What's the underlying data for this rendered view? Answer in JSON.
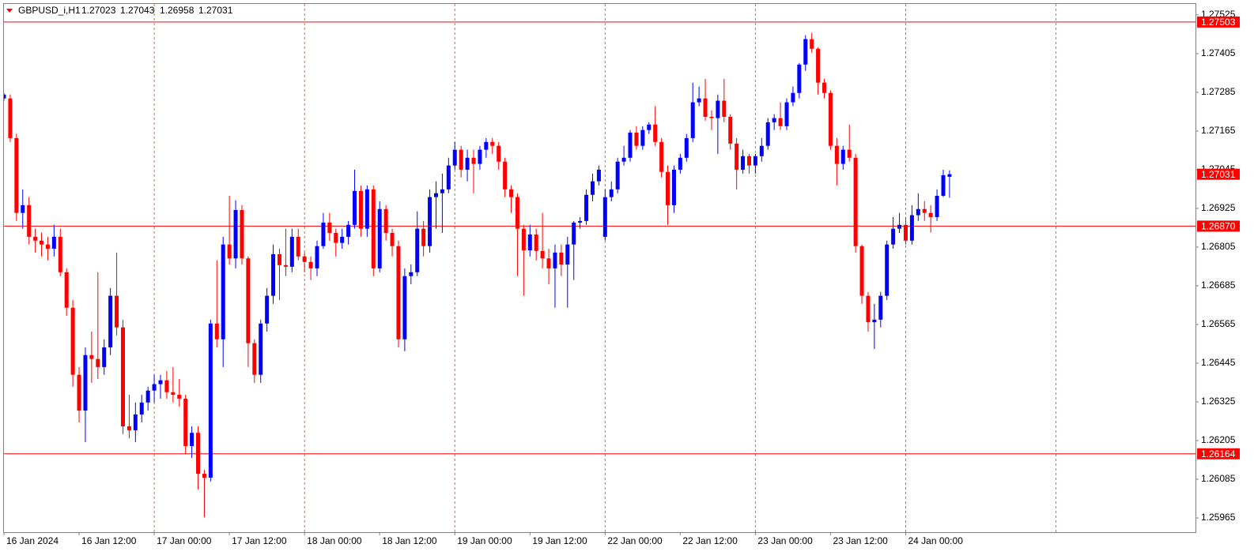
{
  "chart_data": {
    "type": "candlestick",
    "symbol": "GBPUSD_i,H1",
    "up_color": "#0000ff",
    "down_color": "#ff0000",
    "grid_color": "#e8622a",
    "level_color": "#ff0000",
    "categories": [
      "16 Jan 2024",
      null,
      null,
      null,
      null,
      null,
      null,
      null,
      null,
      null,
      null,
      null,
      "16 Jan 12:00",
      null,
      null,
      null,
      null,
      null,
      null,
      null,
      null,
      null,
      null,
      null,
      "17 Jan 00:00",
      null,
      null,
      null,
      null,
      null,
      null,
      null,
      null,
      null,
      null,
      null,
      "17 Jan 12:00",
      null,
      null,
      null,
      null,
      null,
      null,
      null,
      null,
      null,
      null,
      null,
      "18 Jan 00:00",
      null,
      null,
      null,
      null,
      null,
      null,
      null,
      null,
      null,
      null,
      null,
      "18 Jan 12:00",
      null,
      null,
      null,
      null,
      null,
      null,
      null,
      null,
      null,
      null,
      null,
      "19 Jan 00:00",
      null,
      null,
      null,
      null,
      null,
      null,
      null,
      null,
      null,
      null,
      null,
      "19 Jan 12:00",
      null,
      null,
      null,
      null,
      null,
      null,
      null,
      null,
      null,
      null,
      null,
      "22 Jan 00:00",
      null,
      null,
      null,
      null,
      null,
      null,
      null,
      null,
      null,
      null,
      null,
      "22 Jan 12:00",
      null,
      null,
      null,
      null,
      null,
      null,
      null,
      null,
      null,
      null,
      null,
      "23 Jan 00:00",
      null,
      null,
      null,
      null,
      null,
      null,
      null,
      null,
      null,
      null,
      null,
      "23 Jan 12:00",
      null,
      null,
      null,
      null,
      null,
      null,
      null,
      null,
      null,
      null,
      null,
      "24 Jan 00:00",
      null,
      null,
      null,
      null,
      null,
      null,
      null
    ],
    "open": [
      1.27266,
      1.27266,
      1.27143,
      1.26911,
      1.26935,
      1.26837,
      1.26825,
      1.26813,
      1.268,
      1.26837,
      1.26727,
      1.26617,
      1.26409,
      1.26298,
      1.2647,
      1.26458,
      1.26433,
      1.26494,
      1.26654,
      1.26556,
      1.26249,
      1.26237,
      1.26286,
      1.26323,
      1.2636,
      1.2638,
      1.26392,
      1.26355,
      1.26347,
      1.26335,
      1.26188,
      1.26229,
      1.26102,
      1.2609,
      1.26568,
      1.26519,
      1.26813,
      1.2677,
      1.2692,
      1.2677,
      1.26507,
      1.26409,
      1.26568,
      1.26654,
      1.26783,
      1.26749,
      1.26744,
      1.26837,
      1.26776,
      1.26759,
      1.26739,
      1.26808,
      1.26881,
      1.26849,
      1.26818,
      1.26837,
      1.26874,
      1.26979,
      1.26862,
      1.26984,
      1.26739,
      1.26923,
      1.26849,
      1.26808,
      1.26519,
      1.26715,
      1.26727,
      1.26862,
      1.26808,
      1.2696,
      1.26972,
      1.26984,
      1.27058,
      1.27107,
      1.27045,
      1.27082,
      1.27063,
      1.27107,
      1.27131,
      1.27119,
      1.2707,
      1.26984,
      1.2696,
      1.26862,
      1.26795,
      1.26844,
      1.26793,
      1.2677,
      1.26739,
      1.26788,
      1.26751,
      1.26813,
      1.26881,
      1.26886,
      1.26967,
      1.27009,
      1.26837,
      1.2696,
      1.26984,
      1.2707,
      1.27082,
      1.2716,
      1.27119,
      1.27168,
      1.27185,
      1.27131,
      1.27038,
      1.26935,
      1.27045,
      1.27082,
      1.27143,
      1.27254,
      1.27266,
      1.27209,
      1.27205,
      1.27259,
      1.27209,
      1.27126,
      1.27045,
      1.27087,
      1.27058,
      1.27087,
      1.27119,
      1.27192,
      1.27205,
      1.2718,
      1.27254,
      1.27283,
      1.27371,
      1.2745,
      1.2742,
      1.27315,
      1.27283,
      1.27119,
      1.27063,
      1.27107,
      1.27082,
      1.26808,
      1.26654,
      1.26572,
      1.2658,
      1.26654,
      1.26813,
      1.26862,
      1.26874,
      1.26825,
      1.26904,
      1.26923,
      1.26911,
      1.26898,
      1.26964,
      1.27023
    ],
    "high": [
      1.27283,
      1.27278,
      1.27156,
      1.26984,
      1.2696,
      1.26862,
      1.2685,
      1.26837,
      1.26874,
      1.26862,
      1.26739,
      1.26641,
      1.26433,
      1.26494,
      1.26543,
      1.26727,
      1.26519,
      1.26678,
      1.26788,
      1.2658,
      1.26347,
      1.26323,
      1.26347,
      1.26372,
      1.26409,
      1.26409,
      1.26421,
      1.26433,
      1.26396,
      1.26347,
      1.26249,
      1.26249,
      1.26114,
      1.2658,
      1.26764,
      1.26837,
      1.26964,
      1.2695,
      1.26935,
      1.26776,
      1.26519,
      1.2658,
      1.26678,
      1.26813,
      1.268,
      1.26862,
      1.26862,
      1.26862,
      1.26788,
      1.26776,
      1.26825,
      1.26911,
      1.26911,
      1.26862,
      1.26862,
      1.26886,
      1.27045,
      1.26996,
      1.26996,
      1.26996,
      1.26947,
      1.26935,
      1.26862,
      1.26825,
      1.26739,
      1.26751,
      1.26916,
      1.26886,
      1.26984,
      1.27009,
      1.27033,
      1.27082,
      1.27131,
      1.27119,
      1.27107,
      1.27107,
      1.27119,
      1.27143,
      1.27143,
      1.27131,
      1.27082,
      1.26996,
      1.26972,
      1.26874,
      1.26874,
      1.26862,
      1.26911,
      1.268,
      1.26813,
      1.26813,
      1.26837,
      1.26886,
      1.26898,
      1.26984,
      1.27033,
      1.27058,
      1.26984,
      1.27009,
      1.27082,
      1.27119,
      1.27168,
      1.2718,
      1.2718,
      1.27192,
      1.27242,
      1.27143,
      1.27058,
      1.27058,
      1.27094,
      1.27156,
      1.27315,
      1.27303,
      1.27327,
      1.27229,
      1.27278,
      1.27327,
      1.27217,
      1.27143,
      1.27107,
      1.27094,
      1.27094,
      1.27143,
      1.27205,
      1.27217,
      1.27254,
      1.27266,
      1.27303,
      1.27376,
      1.27462,
      1.27469,
      1.27425,
      1.27327,
      1.27291,
      1.27143,
      1.27119,
      1.27185,
      1.27094,
      1.26813,
      1.26666,
      1.26629,
      1.26666,
      1.26825,
      1.26898,
      1.26911,
      1.26898,
      1.26935,
      1.26972,
      1.26947,
      1.26935,
      1.26984,
      1.27045,
      1.27043
    ],
    "low": [
      1.27259,
      1.27131,
      1.26886,
      1.26862,
      1.26813,
      1.26788,
      1.26776,
      1.26764,
      1.26776,
      1.26715,
      1.26592,
      1.26372,
      1.26261,
      1.262,
      1.26384,
      1.26396,
      1.26409,
      1.2647,
      1.26531,
      1.26225,
      1.26212,
      1.262,
      1.26261,
      1.26298,
      1.26323,
      1.26335,
      1.26335,
      1.26323,
      1.2631,
      1.26163,
      1.26151,
      1.26053,
      1.25967,
      1.26078,
      1.26494,
      1.26433,
      1.26751,
      1.26739,
      1.26751,
      1.26433,
      1.26384,
      1.26384,
      1.26543,
      1.26629,
      1.26641,
      1.26715,
      1.26727,
      1.26764,
      1.26727,
      1.26703,
      1.26715,
      1.268,
      1.26825,
      1.26776,
      1.268,
      1.26813,
      1.26862,
      1.26837,
      1.26837,
      1.26715,
      1.26727,
      1.26825,
      1.26776,
      1.26494,
      1.26482,
      1.2669,
      1.26715,
      1.26776,
      1.26788,
      1.26862,
      1.26849,
      1.26972,
      1.27045,
      1.27021,
      1.27009,
      1.26972,
      1.27045,
      1.27082,
      1.27094,
      1.27045,
      1.2696,
      1.26911,
      1.26715,
      1.26654,
      1.26776,
      1.26764,
      1.26739,
      1.2669,
      1.26617,
      1.26715,
      1.26617,
      1.26703,
      1.26862,
      1.26874,
      1.26947,
      1.26996,
      1.26825,
      1.26947,
      1.26972,
      1.27058,
      1.2707,
      1.27107,
      1.27107,
      1.27156,
      1.27119,
      1.27021,
      1.26874,
      1.26911,
      1.27033,
      1.2707,
      1.27131,
      1.27242,
      1.27197,
      1.27168,
      1.27094,
      1.27192,
      1.27107,
      1.26984,
      1.27033,
      1.27033,
      1.27033,
      1.2707,
      1.27107,
      1.27168,
      1.27168,
      1.27168,
      1.27242,
      1.27266,
      1.27352,
      1.27408,
      1.27278,
      1.27266,
      1.27107,
      1.26996,
      1.27045,
      1.2707,
      1.26788,
      1.26629,
      1.26543,
      1.26489,
      1.26556,
      1.26641,
      1.268,
      1.26849,
      1.26813,
      1.26813,
      1.26886,
      1.26886,
      1.2685,
      1.26886,
      1.2696,
      1.26958
    ],
    "close": [
      1.27278,
      1.27143,
      1.26911,
      1.26935,
      1.26837,
      1.26825,
      1.26813,
      1.268,
      1.26837,
      1.26727,
      1.26617,
      1.26409,
      1.26298,
      1.2647,
      1.26458,
      1.26433,
      1.26494,
      1.26654,
      1.26556,
      1.26249,
      1.26237,
      1.26286,
      1.26323,
      1.2636,
      1.2638,
      1.26392,
      1.26355,
      1.26347,
      1.26335,
      1.26188,
      1.26229,
      1.26102,
      1.2609,
      1.26568,
      1.26519,
      1.26813,
      1.2677,
      1.2692,
      1.2677,
      1.26507,
      1.26409,
      1.26568,
      1.26654,
      1.26783,
      1.26749,
      1.26744,
      1.26837,
      1.26776,
      1.26759,
      1.26739,
      1.26808,
      1.26881,
      1.26849,
      1.26818,
      1.26837,
      1.26874,
      1.26979,
      1.26862,
      1.26984,
      1.26739,
      1.26923,
      1.26849,
      1.26808,
      1.26519,
      1.26715,
      1.26727,
      1.26862,
      1.26808,
      1.2696,
      1.26972,
      1.26984,
      1.27058,
      1.27107,
      1.27045,
      1.27082,
      1.27063,
      1.27107,
      1.27131,
      1.27119,
      1.2707,
      1.26984,
      1.2696,
      1.26862,
      1.26795,
      1.26844,
      1.26793,
      1.2677,
      1.26739,
      1.26788,
      1.26751,
      1.26813,
      1.26881,
      1.26886,
      1.26967,
      1.27009,
      1.27045,
      1.2696,
      1.26984,
      1.2707,
      1.27082,
      1.2716,
      1.27119,
      1.27168,
      1.27185,
      1.27131,
      1.27038,
      1.26935,
      1.27045,
      1.27082,
      1.27143,
      1.27254,
      1.27266,
      1.27209,
      1.27205,
      1.27259,
      1.27209,
      1.27126,
      1.27045,
      1.27087,
      1.27058,
      1.27087,
      1.27119,
      1.27192,
      1.27205,
      1.2718,
      1.27254,
      1.27283,
      1.27371,
      1.2745,
      1.2742,
      1.27315,
      1.27283,
      1.27119,
      1.27063,
      1.27107,
      1.27082,
      1.26808,
      1.26654,
      1.26572,
      1.2658,
      1.26654,
      1.26813,
      1.26862,
      1.26874,
      1.26825,
      1.26904,
      1.26923,
      1.26911,
      1.26898,
      1.26964,
      1.27028,
      1.27031
    ],
    "ylim": [
      1.25921,
      1.27559
    ],
    "yticks": [
      1.27525,
      1.27405,
      1.27285,
      1.27165,
      1.27045,
      1.26925,
      1.26805,
      1.26685,
      1.26565,
      1.26445,
      1.26325,
      1.26205,
      1.26085,
      1.25965
    ],
    "levels": [
      {
        "value": 1.27503,
        "label": "1.27503"
      },
      {
        "value": 1.2687,
        "label": "1.26870"
      },
      {
        "value": 1.26164,
        "label": "1.26164"
      }
    ]
  }
}
